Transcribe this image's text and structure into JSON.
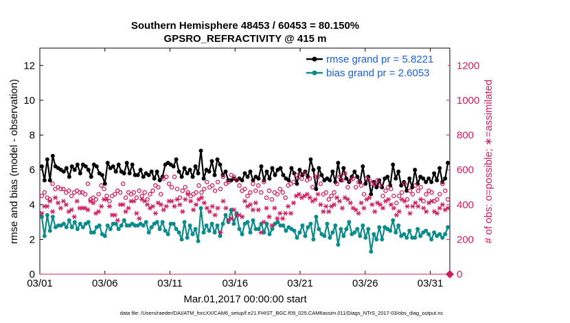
{
  "chart_data": {
    "type": "line",
    "title": [
      "Southern Hemisphere 48453 / 60453 = 80.150%",
      "GPSRO_REFRACTIVITY @ 415 m"
    ],
    "xlabel": "Mar.01,2017 00:00:00 start",
    "ylabel_left": "rmse and bias (model - observation)",
    "ylabel_right": "# of obs: o=possible; ∗=assimilated",
    "footnote": "data file: /Users/raeder/DAI/ATM_forcXX/CAM6_setup/f.e21.FHIST_BGC.f09_025.CAM6assim.011/Diags_NTrS_2017-03/obs_diag_output.nc",
    "x_range_days": [
      0,
      31.5
    ],
    "x_ticks": [
      {
        "day": 0,
        "label": "03/01"
      },
      {
        "day": 5,
        "label": "03/06"
      },
      {
        "day": 10,
        "label": "03/11"
      },
      {
        "day": 15,
        "label": "03/16"
      },
      {
        "day": 20,
        "label": "03/21"
      },
      {
        "day": 25,
        "label": "03/26"
      },
      {
        "day": 30,
        "label": "03/31"
      }
    ],
    "y_left_range": [
      0,
      13
    ],
    "y_left_ticks": [
      "0",
      "2",
      "4",
      "6",
      "8",
      "10",
      "12"
    ],
    "y_right_range": [
      0,
      1300
    ],
    "y_right_ticks": [
      "0",
      "200",
      "400",
      "600",
      "800",
      "1000",
      "1200"
    ],
    "grid": false,
    "legend_position": "top-right",
    "colors": {
      "rmse": "#000000",
      "bias": "#0d8a8a",
      "obs": "#d01c5f",
      "legend_text": "#1a5fd6"
    },
    "series": [
      {
        "name": "rmse grand pr = 5.8221",
        "axis": "left",
        "style": "line-marker",
        "values": [
          6.2,
          5.4,
          6.6,
          5.4,
          6.8,
          6.2,
          6.1,
          6.0,
          5.9,
          6.1,
          5.6,
          6.2,
          6.0,
          6.3,
          5.8,
          6.3,
          6.2,
          6.0,
          5.6,
          6.3,
          6.2,
          5.8,
          5.7,
          5.2,
          6.4,
          6.1,
          6.2,
          5.9,
          6.3,
          5.9,
          5.8,
          6.4,
          5.8,
          6.3,
          5.7,
          5.7,
          6.0,
          5.6,
          5.8,
          5.7,
          5.9,
          5.5,
          5.9,
          5.4,
          5.6,
          6.3,
          6.4,
          6.3,
          6.2,
          6.6,
          5.9,
          5.6,
          6.1,
          5.8,
          6.0,
          5.6,
          6.2,
          5.8,
          7.1,
          5.5,
          6.0,
          5.9,
          6.5,
          5.7,
          6.6,
          6.3,
          5.7,
          5.9,
          5.4,
          5.4,
          5.5,
          5.4,
          5.5,
          5.4,
          5.8,
          5.6,
          5.9,
          5.4,
          5.6,
          5.5,
          6.2,
          5.4,
          5.9,
          5.5,
          6.1,
          5.7,
          6.0,
          6.1,
          5.7,
          5.5,
          5.4,
          6.1,
          5.8,
          5.2,
          6.0,
          5.7,
          5.9,
          5.6,
          6.6,
          6.0,
          4.9,
          6.1,
          5.7,
          5.4,
          5.5,
          5.4,
          5.9,
          5.3,
          6.4,
          5.4,
          6.1,
          5.5,
          5.3,
          5.6,
          5.9,
          5.6,
          5.3,
          6.2,
          5.2,
          5.6,
          4.6,
          5.3,
          5.0,
          5.4,
          5.0,
          5.5,
          5.6,
          5.1,
          6.3,
          5.5,
          5.9,
          5.1,
          5.3,
          4.8,
          5.5,
          5.0,
          6.0,
          5.2,
          5.6,
          5.5,
          5.3,
          5.5,
          5.3,
          5.8,
          5.4,
          6.1,
          5.3,
          5.5,
          6.4
        ]
      },
      {
        "name": "bias grand pr = 2.6053",
        "axis": "left",
        "style": "line-marker",
        "values": [
          3.3,
          2.2,
          3.4,
          2.5,
          3.3,
          2.7,
          2.8,
          2.8,
          2.9,
          2.7,
          3.1,
          2.7,
          3.0,
          2.6,
          2.9,
          2.7,
          2.9,
          3.0,
          2.4,
          2.4,
          2.7,
          2.8,
          2.3,
          2.2,
          2.8,
          2.6,
          2.9,
          2.9,
          2.6,
          2.8,
          3.1,
          2.8,
          2.8,
          2.9,
          2.8,
          2.8,
          2.9,
          2.8,
          3.0,
          2.4,
          2.7,
          2.9,
          3.0,
          2.6,
          3.0,
          2.5,
          2.3,
          2.9,
          2.9,
          2.6,
          2.4,
          2.0,
          3.0,
          2.1,
          2.8,
          2.3,
          2.6,
          1.9,
          3.8,
          2.4,
          2.8,
          2.5,
          2.9,
          2.4,
          2.8,
          2.2,
          2.9,
          3.4,
          3.0,
          3.7,
          2.9,
          3.5,
          2.6,
          2.3,
          2.9,
          3.0,
          2.4,
          3.1,
          2.6,
          2.6,
          2.9,
          2.4,
          2.9,
          2.3,
          2.6,
          2.9,
          3.0,
          2.8,
          2.8,
          2.5,
          2.7,
          2.6,
          2.5,
          2.1,
          2.4,
          2.8,
          2.2,
          2.7,
          2.9,
          2.0,
          3.3,
          2.6,
          2.3,
          2.2,
          2.9,
          2.1,
          2.4,
          2.8,
          1.7,
          2.6,
          2.2,
          2.6,
          3.0,
          2.3,
          2.4,
          2.6,
          2.2,
          2.8,
          2.1,
          2.6,
          1.3,
          2.3,
          2.0,
          2.7,
          2.0,
          2.7,
          2.6,
          2.5,
          3.1,
          2.4,
          2.8,
          2.2,
          2.3,
          2.1,
          2.5,
          2.1,
          2.1,
          2.6,
          2.2,
          2.4,
          2.5,
          2.3,
          2.0,
          2.4,
          2.2,
          2.3,
          2.1,
          2.3,
          2.7
        ]
      },
      {
        "name": "possible",
        "axis": "right",
        "style": "circle",
        "values": [
          450,
          470,
          440,
          430,
          520,
          490,
          500,
          490,
          490,
          470,
          480,
          450,
          470,
          480,
          470,
          470,
          460,
          520,
          430,
          440,
          430,
          460,
          510,
          490,
          450,
          420,
          450,
          460,
          480,
          470,
          520,
          440,
          470,
          460,
          470,
          440,
          480,
          450,
          470,
          430,
          460,
          480,
          510,
          500,
          460,
          550,
          560,
          520,
          500,
          560,
          490,
          440,
          480,
          500,
          470,
          450,
          460,
          470,
          510,
          470,
          490,
          530,
          500,
          510,
          480,
          530,
          490,
          560,
          520,
          530,
          570,
          560,
          540,
          510,
          480,
          490,
          450,
          470,
          520,
          480,
          510,
          470,
          530,
          440,
          480,
          430,
          470,
          460,
          490,
          470,
          440,
          510,
          520,
          530,
          570,
          560,
          550,
          580,
          540,
          550,
          500,
          560,
          560,
          520,
          460,
          470,
          430,
          450,
          470,
          520,
          560,
          540,
          580,
          500,
          540,
          550,
          500,
          530,
          510,
          460,
          550,
          540,
          520,
          520,
          540,
          510,
          450,
          480,
          500,
          490,
          450,
          410,
          450,
          470,
          520,
          430,
          480,
          460,
          510,
          480,
          500,
          420,
          460,
          480,
          470,
          420,
          430,
          460,
          520,
          480,
          430
        ]
      },
      {
        "name": "assimilated",
        "axis": "right",
        "style": "asterisk",
        "values": [
          350,
          390,
          390,
          420,
          360,
          440,
          410,
          380,
          420,
          400,
          360,
          370,
          330,
          420,
          380,
          380,
          380,
          370,
          420,
          410,
          350,
          360,
          390,
          430,
          430,
          390,
          340,
          340,
          310,
          400,
          400,
          360,
          380,
          420,
          420,
          350,
          320,
          430,
          420,
          400,
          380,
          390,
          350,
          410,
          400,
          370,
          390,
          420,
          420,
          390,
          430,
          400,
          360,
          430,
          460,
          420,
          370,
          400,
          430,
          440,
          410,
          380,
          360,
          390,
          340,
          380,
          240,
          420,
          380,
          310,
          320,
          370,
          340,
          340,
          330,
          420,
          390,
          400,
          370,
          410,
          370,
          240,
          300,
          380,
          330,
          280,
          380,
          320,
          350,
          320,
          350,
          390,
          350,
          410,
          450,
          460,
          440,
          450,
          460,
          440,
          420,
          430,
          460,
          400,
          360,
          390,
          360,
          390,
          400,
          440,
          420,
          380,
          440,
          430,
          410,
          380,
          370,
          350,
          410,
          380,
          430,
          440,
          400,
          360,
          410,
          400,
          380,
          420,
          430,
          400,
          380,
          340,
          360,
          430,
          420,
          390,
          350,
          390,
          410,
          390,
          430,
          380,
          360,
          410,
          420,
          360,
          350,
          380,
          400,
          370,
          380
        ]
      }
    ]
  },
  "legend": {
    "rmse_label": "rmse grand pr = 5.8221",
    "bias_label": "bias grand pr = 2.6053"
  }
}
